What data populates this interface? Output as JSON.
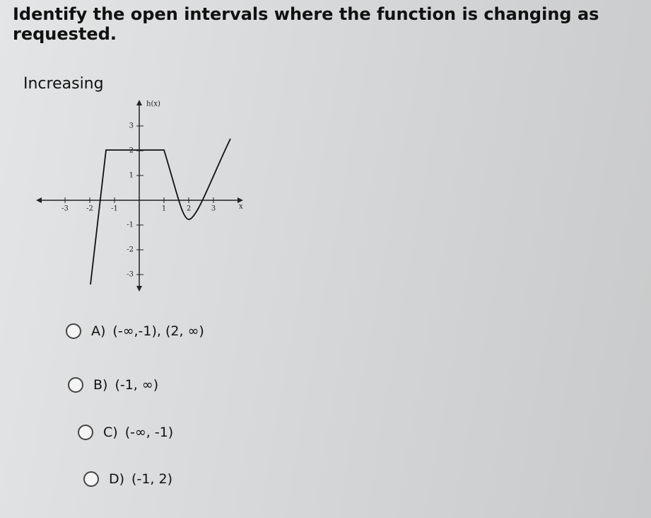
{
  "question": "Identify the open intervals where the function is changing as requested.",
  "prompt": "Increasing",
  "graph": {
    "y_label": "h(x)",
    "x_label": "x",
    "x_ticks": [
      "-3",
      "-2",
      "-1",
      "1",
      "2",
      "3"
    ],
    "y_ticks": [
      "3",
      "2",
      "1",
      "-1",
      "-2",
      "-3"
    ]
  },
  "options": [
    {
      "letter": "A)",
      "text": "(-∞,-1), (2, ∞)"
    },
    {
      "letter": "B)",
      "text": "(-1, ∞)"
    },
    {
      "letter": "C)",
      "text": "(-∞, -1)"
    },
    {
      "letter": "D)",
      "text": "(-1, 2)"
    }
  ]
}
